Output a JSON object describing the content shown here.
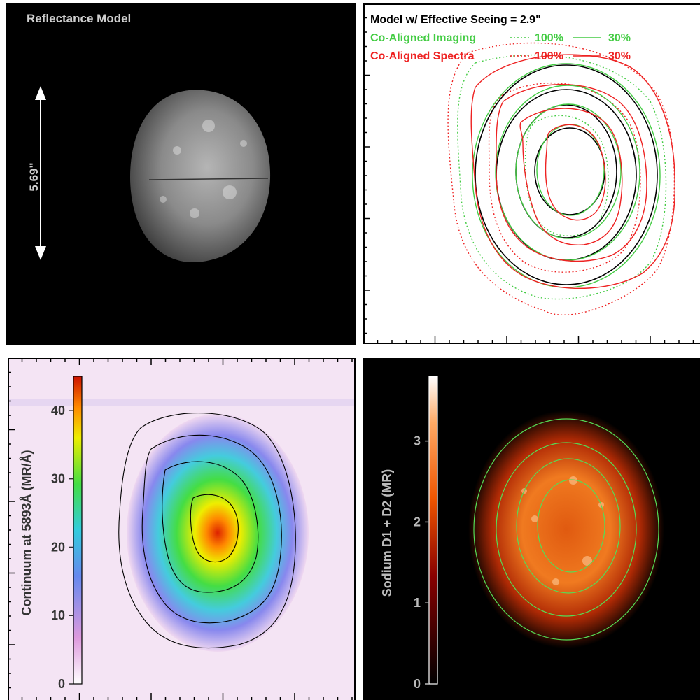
{
  "panels": {
    "reflectance": {
      "title": "Reflectance Model",
      "scale_label": "5.69\""
    },
    "contours": {
      "legend": {
        "model": "Model w/ Effective Seeing = 2.9\"",
        "imaging_label": "Co-Aligned Imaging",
        "imaging_hi": "100%",
        "imaging_lo": "30%",
        "spectra_label": "Co-Aligned Spectra",
        "spectra_hi": "100%",
        "spectra_lo": "30%"
      }
    },
    "continuum": {
      "colorbar_label": "Continuum at  5893Å (MR/Å)"
    },
    "sodium": {
      "colorbar_label": "Sodium D1 + D2 (MR)"
    }
  },
  "chart_data": [
    {
      "type": "heatmap",
      "title": "Reflectance Model",
      "annotation": "5.69\""
    },
    {
      "type": "line",
      "series": [
        {
          "name": "Model w/ Effective Seeing = 2.9\"",
          "color": "#000000"
        },
        {
          "name": "Co-Aligned Imaging",
          "color": "#44cc44"
        },
        {
          "name": "Co-Aligned Spectra",
          "color": "#ee2222"
        }
      ]
    },
    {
      "type": "heatmap",
      "colorbar": {
        "label": "Continuum at  5893Å (MR/Å)",
        "ticks": [
          0,
          10,
          20,
          30,
          40
        ],
        "range": [
          0,
          45
        ]
      }
    },
    {
      "type": "heatmap",
      "colorbar": {
        "label": "Sodium D1 + D2 (MR)",
        "ticks": [
          0,
          1,
          2,
          3
        ],
        "range": [
          0,
          3.8
        ]
      }
    }
  ],
  "colors": {
    "imaging": "#44cc44",
    "spectra": "#ee2222",
    "model": "#000000",
    "contour_green": "#55dd55"
  }
}
